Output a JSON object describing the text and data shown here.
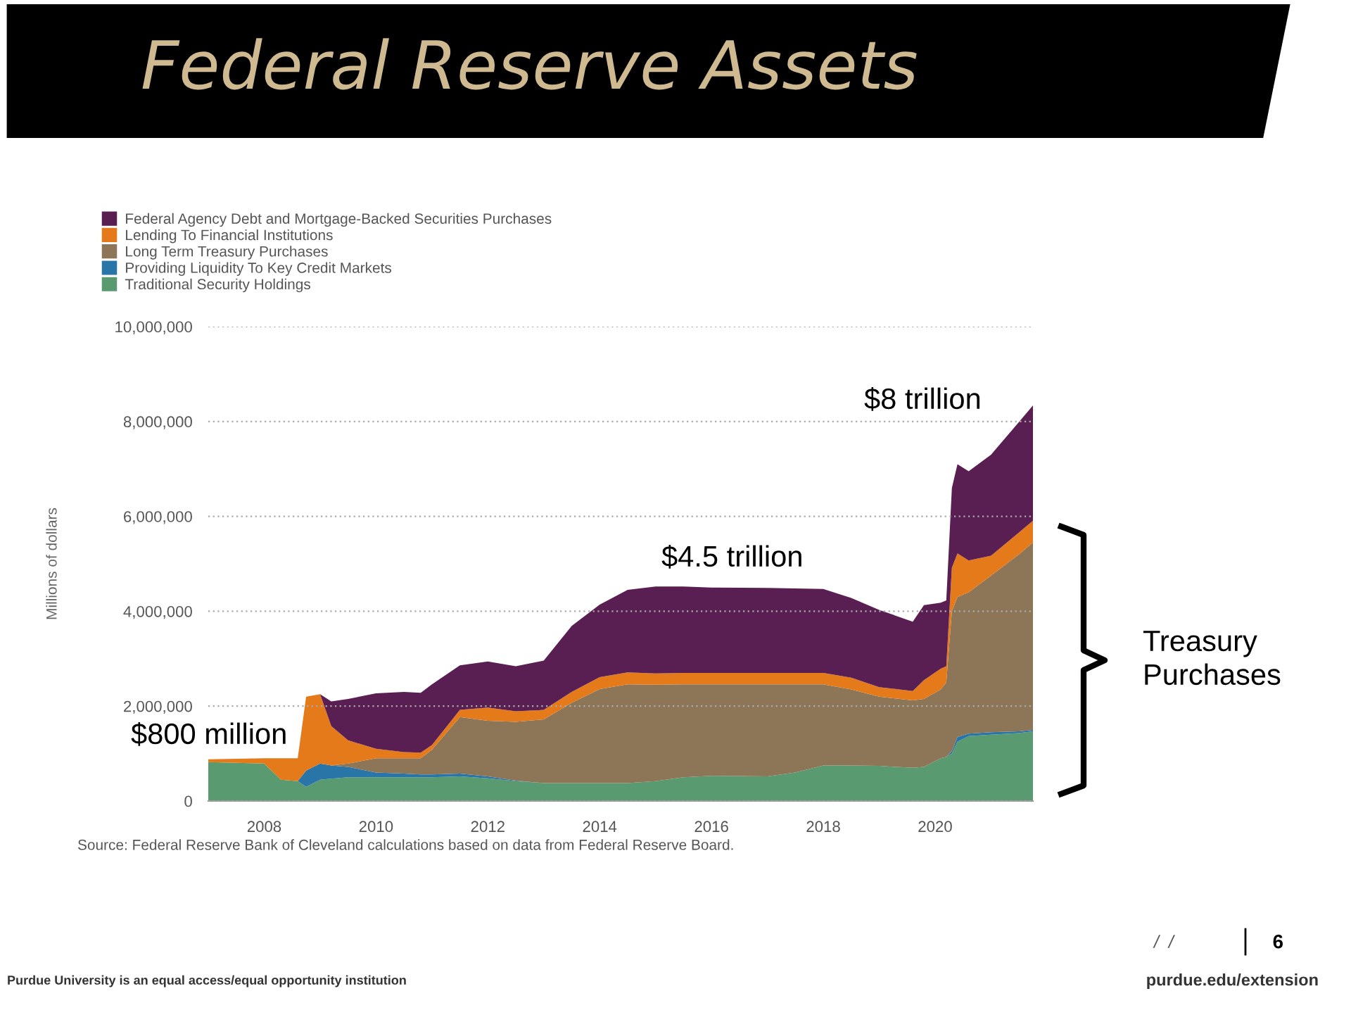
{
  "chart_data": {
    "type": "area",
    "stacked": true,
    "title": "Federal Reserve Assets",
    "ylabel": "Millions of dollars",
    "x": [
      2007.0,
      2008.0,
      2008.3,
      2008.6,
      2008.75,
      2009.0,
      2009.2,
      2009.5,
      2010.0,
      2010.5,
      2010.8,
      2011.0,
      2011.5,
      2012.0,
      2012.5,
      2013.0,
      2013.5,
      2014.0,
      2014.5,
      2015.0,
      2015.5,
      2016.0,
      2017.0,
      2017.5,
      2018.0,
      2018.5,
      2019.0,
      2019.6,
      2019.8,
      2020.1,
      2020.2,
      2020.3,
      2020.4,
      2020.6,
      2021.0,
      2021.5,
      2021.75
    ],
    "series": [
      {
        "name": "Traditional Security Holdings",
        "color": "#5a9a70",
        "values": [
          820000,
          790000,
          450000,
          420000,
          300000,
          450000,
          470000,
          500000,
          500000,
          500000,
          500000,
          500000,
          520000,
          480000,
          420000,
          380000,
          380000,
          380000,
          380000,
          420000,
          500000,
          530000,
          520000,
          600000,
          750000,
          750000,
          740000,
          700000,
          720000,
          900000,
          930000,
          1000000,
          1250000,
          1370000,
          1400000,
          1430000,
          1470000
        ]
      },
      {
        "name": "Providing Liquidity To Key Credit Markets",
        "color": "#2a75a8",
        "values": [
          0,
          0,
          0,
          0,
          340000,
          340000,
          280000,
          220000,
          100000,
          80000,
          60000,
          60000,
          60000,
          40000,
          10000,
          0,
          0,
          0,
          0,
          0,
          0,
          0,
          0,
          0,
          0,
          0,
          0,
          0,
          0,
          0,
          0,
          50000,
          100000,
          50000,
          50000,
          40000,
          30000
        ]
      },
      {
        "name": "Long Term Treasury Purchases",
        "color": "#8d7658",
        "values": [
          0,
          0,
          0,
          0,
          0,
          0,
          0,
          70000,
          300000,
          320000,
          340000,
          520000,
          1190000,
          1170000,
          1240000,
          1340000,
          1690000,
          1980000,
          2080000,
          2030000,
          1960000,
          1930000,
          1940000,
          1860000,
          1710000,
          1600000,
          1460000,
          1420000,
          1430000,
          1450000,
          1570000,
          2950000,
          2950000,
          2980000,
          3300000,
          3730000,
          3950000
        ]
      },
      {
        "name": "Lending To Financial Institutions",
        "color": "#e57a1a",
        "values": [
          60000,
          110000,
          450000,
          480000,
          1560000,
          1460000,
          830000,
          490000,
          200000,
          130000,
          120000,
          100000,
          150000,
          280000,
          220000,
          200000,
          230000,
          250000,
          250000,
          240000,
          240000,
          240000,
          240000,
          240000,
          240000,
          250000,
          200000,
          200000,
          400000,
          440000,
          340000,
          920000,
          920000,
          670000,
          420000,
          460000,
          460000
        ]
      },
      {
        "name": "Federal Agency Debt and Mortgage-Backed Securities Purchases",
        "color": "#5a1f52",
        "values": [
          0,
          0,
          0,
          0,
          0,
          0,
          520000,
          870000,
          1170000,
          1270000,
          1260000,
          1280000,
          940000,
          970000,
          950000,
          1040000,
          1390000,
          1530000,
          1740000,
          1830000,
          1820000,
          1800000,
          1790000,
          1780000,
          1770000,
          1680000,
          1630000,
          1460000,
          1580000,
          1390000,
          1390000,
          1680000,
          1880000,
          1880000,
          2130000,
          2330000,
          2430000
        ]
      }
    ],
    "xlim": [
      2007.0,
      2021.75
    ],
    "xticks": [
      2008,
      2010,
      2012,
      2014,
      2016,
      2018,
      2020
    ],
    "ylim": [
      0,
      10000000
    ],
    "yticks": [
      0,
      {
        "value": 2000000,
        "label": "2,000,000"
      },
      {
        "value": 4000000,
        "label": "4,000,000"
      },
      {
        "value": 6000000,
        "label": "6,000,000"
      },
      {
        "value": 8000000,
        "label": "8,000,000"
      },
      {
        "value": 10000000,
        "label": "10,000,000"
      }
    ],
    "grid": "y",
    "legend": "top left",
    "annotations": [
      "$800 million",
      "$4.5 trillion",
      "$8 trillion",
      "Treasury\nPurchases",
      "Source: Federal Reserve Bank of Cleveland calculations based on data from Federal Reserve Board.",
      "Purdue University is an equal access/equal opportunity institution",
      "purdue.edu/extension",
      "/  /",
      "6"
    ]
  }
}
